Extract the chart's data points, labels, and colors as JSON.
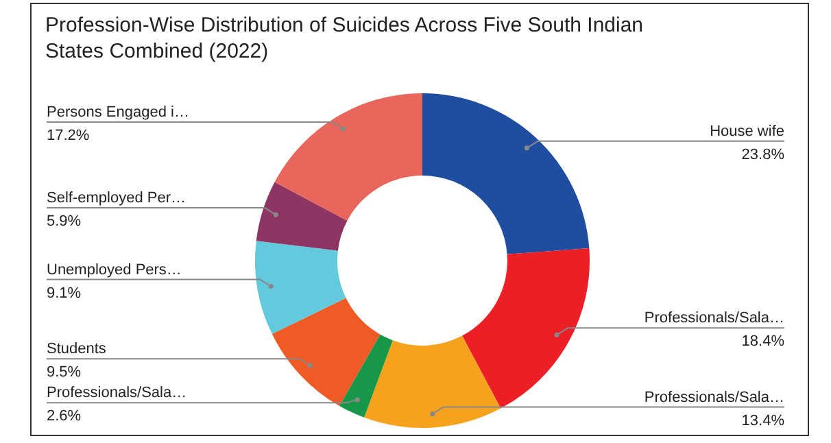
{
  "chart_data": {
    "type": "donut",
    "title": "Profession-Wise Distribution of Suicides Across Five South Indian States Combined (2022)",
    "categories": [
      "House wife",
      "Professionals/Sala…",
      "Professionals/Sala…",
      "Professionals/Sala…",
      "Students",
      "Unemployed Pers…",
      "Self-employed Per…",
      "Persons Engaged i…"
    ],
    "values": [
      23.8,
      18.4,
      13.4,
      2.6,
      9.5,
      9.1,
      5.9,
      17.2
    ],
    "value_labels": [
      "23.8%",
      "18.4%",
      "13.4%",
      "2.6%",
      "9.5%",
      "9.1%",
      "5.9%",
      "17.2%"
    ],
    "colors": [
      "#1f4ea1",
      "#ec1f26",
      "#f7a21f",
      "#169848",
      "#f05a24",
      "#63c9dc",
      "#8e3563",
      "#e8665c"
    ],
    "legend": false
  }
}
